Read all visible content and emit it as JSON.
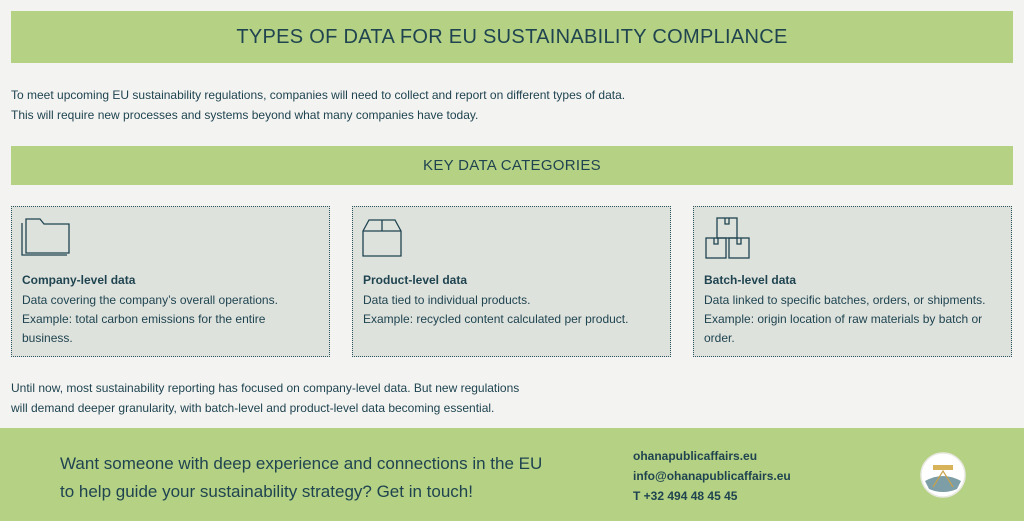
{
  "header": {
    "title": "TYPES OF DATA FOR EU SUSTAINABILITY COMPLIANCE"
  },
  "intro": [
    "To meet upcoming EU sustainability regulations, companies will need to collect and report on different types of data.",
    "This will require new processes and systems beyond what many companies have today."
  ],
  "section_title": "KEY DATA CATEGORIES",
  "cards": [
    {
      "title": "Company-level data",
      "description": "Data covering the company’s overall operations.",
      "example": "Example: total carbon emissions for the entire business."
    },
    {
      "title": "Product-level data",
      "description": "Data tied to individual products.",
      "example": "Example: recycled content calculated per product."
    },
    {
      "title": "Batch-level data",
      "description": "Data linked to specific batches, orders, or shipments.",
      "example": "Example: origin location of raw materials by batch or order."
    }
  ],
  "outro": [
    "Until now, most sustainability reporting has focused on company-level data. But new regulations",
    "will demand deeper granularity, with batch-level and product-level data becoming essential."
  ],
  "footer": {
    "cta": [
      "Want someone with deep experience and connections in the EU",
      "to help guide your sustainability strategy? Get in touch!"
    ],
    "contact": [
      "ohanapublicaffairs.eu",
      "info@ohanapublicaffairs.eu",
      "T +32 494 48 45 45"
    ]
  }
}
